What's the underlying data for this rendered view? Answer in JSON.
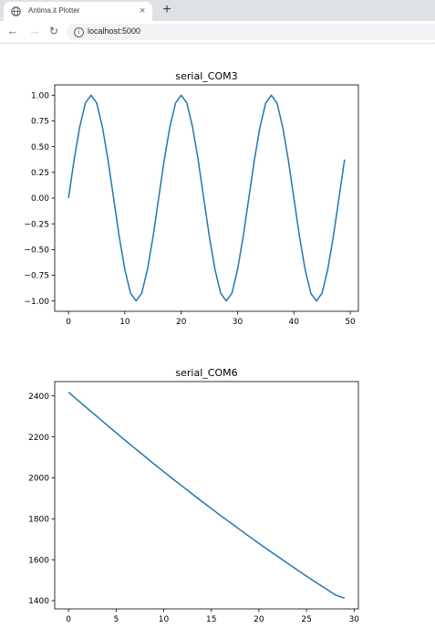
{
  "browser": {
    "tab_title": "Antima.it Plotter",
    "close_glyph": "×",
    "newtab_glyph": "+",
    "back_glyph": "←",
    "forward_glyph": "→",
    "reload_glyph": "↻",
    "info_glyph": "i",
    "url": "localhost:5000",
    "icons": [
      "globe-icon",
      "close-icon",
      "plus-icon",
      "arrow-left-icon",
      "arrow-right-icon",
      "reload-icon",
      "info-icon"
    ]
  },
  "chart_data": [
    {
      "type": "line",
      "title": "serial_COM3",
      "xlabel": "",
      "ylabel": "",
      "color": "#1f77b4",
      "xlim": [
        -2.45,
        51.45
      ],
      "ylim": [
        -1.1,
        1.1
      ],
      "xticks": [
        0,
        10,
        20,
        30,
        40,
        50
      ],
      "yticks": [
        -1.0,
        -0.75,
        -0.5,
        -0.25,
        0.0,
        0.25,
        0.5,
        0.75,
        1.0
      ],
      "yticklabels": [
        "−1.00",
        "−0.75",
        "−0.50",
        "−0.25",
        "0.00",
        "0.25",
        "0.50",
        "0.75",
        "1.00"
      ],
      "grid": false,
      "x": [
        0,
        1,
        2,
        3,
        4,
        5,
        6,
        7,
        8,
        9,
        10,
        11,
        12,
        13,
        14,
        15,
        16,
        17,
        18,
        19,
        20,
        21,
        22,
        23,
        24,
        25,
        26,
        27,
        28,
        29,
        30,
        31,
        32,
        33,
        34,
        35,
        36,
        37,
        38,
        39,
        40,
        41,
        42,
        43,
        44,
        45,
        46,
        47,
        48,
        49
      ],
      "y": [
        0.0,
        0.375,
        0.695,
        0.924,
        1.0,
        0.924,
        0.695,
        0.375,
        0.0,
        -0.375,
        -0.695,
        -0.924,
        -1.0,
        -0.924,
        -0.695,
        -0.375,
        0.0,
        0.375,
        0.695,
        0.924,
        1.0,
        0.924,
        0.695,
        0.375,
        0.0,
        -0.375,
        -0.695,
        -0.924,
        -1.0,
        -0.924,
        -0.695,
        -0.375,
        0.0,
        0.375,
        0.695,
        0.924,
        1.0,
        0.924,
        0.695,
        0.375,
        0.0,
        -0.375,
        -0.695,
        -0.924,
        -1.0,
        -0.924,
        -0.695,
        -0.375,
        0.0,
        0.375
      ]
    },
    {
      "type": "line",
      "title": "serial_COM6",
      "xlabel": "",
      "ylabel": "",
      "color": "#1f77b4",
      "xlim": [
        -1.45,
        30.45
      ],
      "ylim": [
        1360,
        2470
      ],
      "xticks": [
        0,
        5,
        10,
        15,
        20,
        25,
        30
      ],
      "yticks": [
        1400,
        1600,
        1800,
        2000,
        2200,
        2400
      ],
      "grid": false,
      "x": [
        0,
        1,
        2,
        3,
        4,
        5,
        6,
        7,
        8,
        9,
        10,
        11,
        12,
        13,
        14,
        15,
        16,
        17,
        18,
        19,
        20,
        21,
        22,
        23,
        24,
        25,
        26,
        27,
        28,
        29
      ],
      "y": [
        2418,
        2378,
        2338,
        2299,
        2259,
        2220,
        2181,
        2143,
        2105,
        2067,
        2030,
        1993,
        1957,
        1921,
        1885,
        1850,
        1815,
        1781,
        1747,
        1713,
        1680,
        1647,
        1615,
        1583,
        1551,
        1520,
        1489,
        1459,
        1429,
        1412
      ]
    }
  ]
}
